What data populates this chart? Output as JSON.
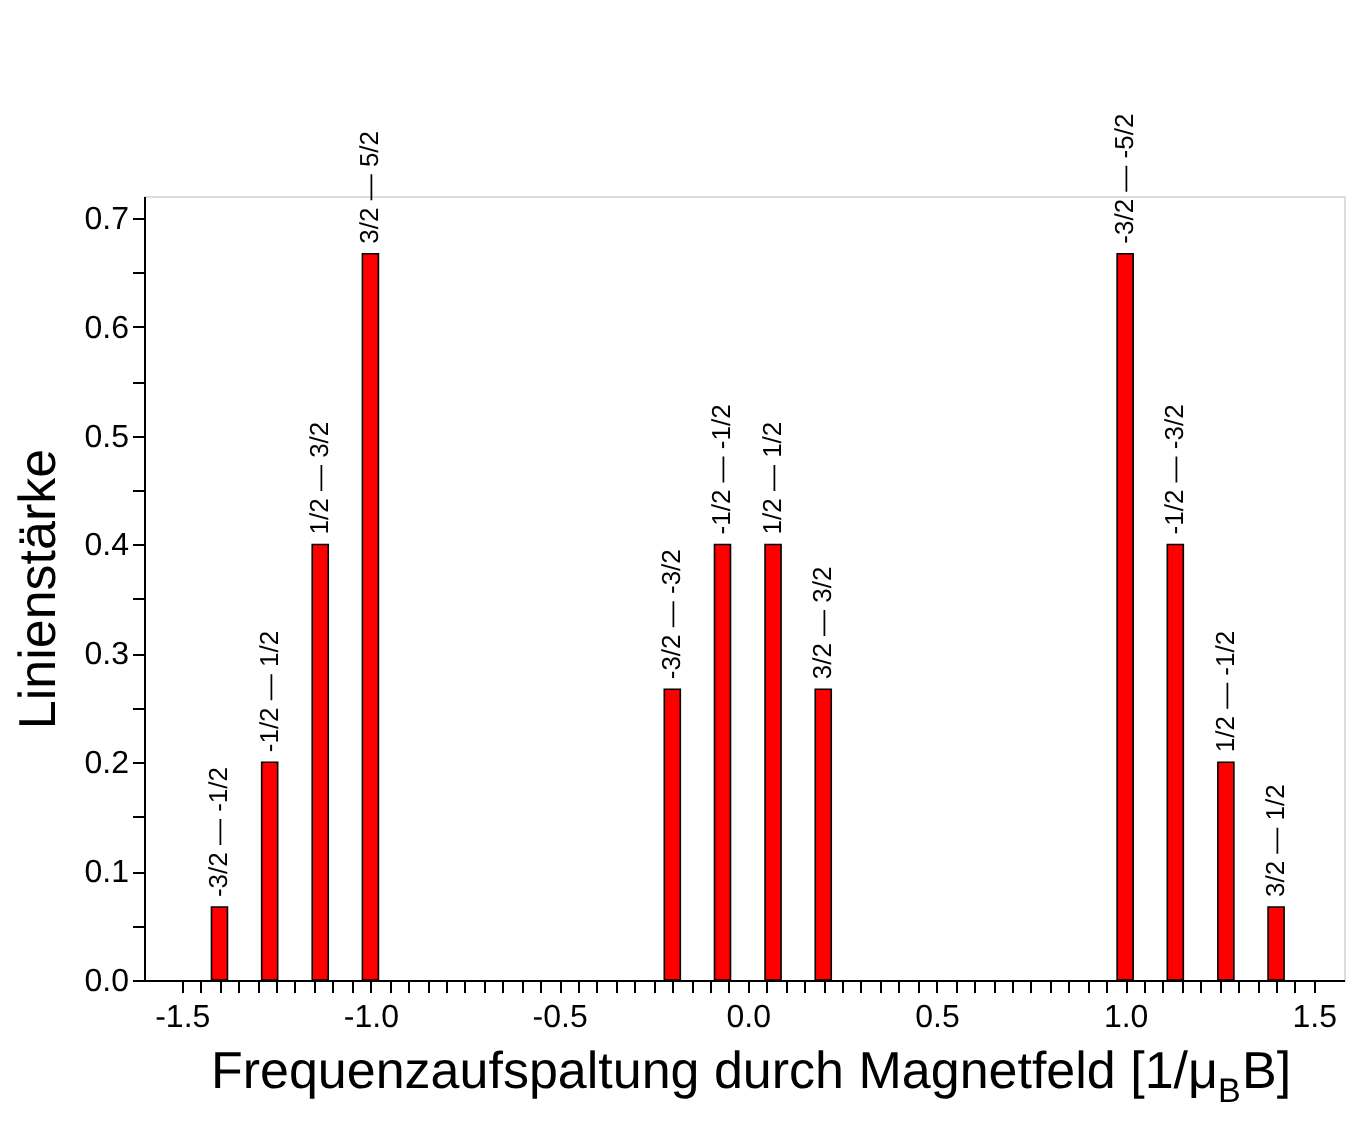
{
  "chart_data": {
    "type": "bar",
    "xlabel": "Frequenzaufspaltung durch Magnetfeld [1/μ$_{B}$B]",
    "ylabel": "Linienstärke",
    "x": [
      -1.4,
      -1.267,
      -1.133,
      -1.0,
      -0.2,
      -0.067,
      0.067,
      0.2,
      1.0,
      1.133,
      1.267,
      1.4
    ],
    "values": [
      0.067,
      0.2,
      0.4,
      0.667,
      0.267,
      0.4,
      0.4,
      0.267,
      0.667,
      0.4,
      0.2,
      0.067
    ],
    "value_labels": [
      "-3/2 — -1/2",
      "-1/2 — 1/2",
      "1/2 — 3/2",
      "3/2 — 5/2",
      "-3/2 — -3/2",
      "-1/2 — -1/2",
      "1/2 — 1/2",
      "3/2 — 3/2",
      "-3/2 — -5/2",
      "-1/2 — -3/2",
      "1/2 — -1/2",
      "3/2 — 1/2"
    ],
    "color": "#ff0000",
    "xlim": [
      -1.6,
      1.58
    ],
    "ylim": [
      0,
      0.72
    ],
    "xticks": [
      {
        "value": -1.5,
        "label": "-1.5"
      },
      {
        "value": -1.0,
        "label": "-1.0"
      },
      {
        "value": -0.5,
        "label": "-0.5"
      },
      {
        "value": 0,
        "label": "0.0"
      },
      {
        "value": 0.5,
        "label": "0.5"
      },
      {
        "value": 1.0,
        "label": "1.0"
      },
      {
        "value": 1.5,
        "label": "1.5"
      },
      {
        "value": -1.45,
        "label": null
      },
      {
        "value": -1.4,
        "label": null
      },
      {
        "value": -1.35,
        "label": null
      },
      {
        "value": -1.3,
        "label": null
      },
      {
        "value": -1.25,
        "label": null
      },
      {
        "value": -1.2,
        "label": null
      },
      {
        "value": -1.15,
        "label": null
      },
      {
        "value": -1.1,
        "label": null
      },
      {
        "value": -1.05,
        "label": null
      },
      {
        "value": -0.95,
        "label": null
      },
      {
        "value": -0.9,
        "label": null
      },
      {
        "value": -0.85,
        "label": null
      },
      {
        "value": -0.8,
        "label": null
      },
      {
        "value": -0.75,
        "label": null
      },
      {
        "value": -0.7,
        "label": null
      },
      {
        "value": -0.65,
        "label": null
      },
      {
        "value": -0.6,
        "label": null
      },
      {
        "value": -0.55,
        "label": null
      },
      {
        "value": -0.45,
        "label": null
      },
      {
        "value": -0.4,
        "label": null
      },
      {
        "value": -0.35,
        "label": null
      },
      {
        "value": -0.3,
        "label": null
      },
      {
        "value": -0.25,
        "label": null
      },
      {
        "value": -0.2,
        "label": null
      },
      {
        "value": -0.15,
        "label": null
      },
      {
        "value": -0.1,
        "label": null
      },
      {
        "value": -0.05,
        "label": null
      },
      {
        "value": 0.05,
        "label": null
      },
      {
        "value": 0.1,
        "label": null
      },
      {
        "value": 0.15,
        "label": null
      },
      {
        "value": 0.2,
        "label": null
      },
      {
        "value": 0.25,
        "label": null
      },
      {
        "value": 0.3,
        "label": null
      },
      {
        "value": 0.35,
        "label": null
      },
      {
        "value": 0.4,
        "label": null
      },
      {
        "value": 0.45,
        "label": null
      },
      {
        "value": 0.55,
        "label": null
      },
      {
        "value": 0.6,
        "label": null
      },
      {
        "value": 0.65,
        "label": null
      },
      {
        "value": 0.7,
        "label": null
      },
      {
        "value": 0.75,
        "label": null
      },
      {
        "value": 0.8,
        "label": null
      },
      {
        "value": 0.85,
        "label": null
      },
      {
        "value": 0.9,
        "label": null
      },
      {
        "value": 0.95,
        "label": null
      },
      {
        "value": 1.05,
        "label": null
      },
      {
        "value": 1.1,
        "label": null
      },
      {
        "value": 1.15,
        "label": null
      },
      {
        "value": 1.2,
        "label": null
      },
      {
        "value": 1.25,
        "label": null
      },
      {
        "value": 1.3,
        "label": null
      },
      {
        "value": 1.35,
        "label": null
      },
      {
        "value": 1.4,
        "label": null
      },
      {
        "value": 1.45,
        "label": null
      }
    ],
    "yticks": [
      {
        "value": 0,
        "label": "0.0"
      },
      0.1,
      0.2,
      0.3,
      0.4,
      0.5,
      0.6,
      0.7,
      {
        "value": 0.05,
        "label": null
      },
      {
        "value": 0.15,
        "label": null
      },
      {
        "value": 0.25,
        "label": null
      },
      {
        "value": 0.35,
        "label": null
      },
      {
        "value": 0.45,
        "label": null
      },
      {
        "value": 0.55,
        "label": null
      },
      {
        "value": 0.65,
        "label": null
      }
    ],
    "grid": false
  }
}
